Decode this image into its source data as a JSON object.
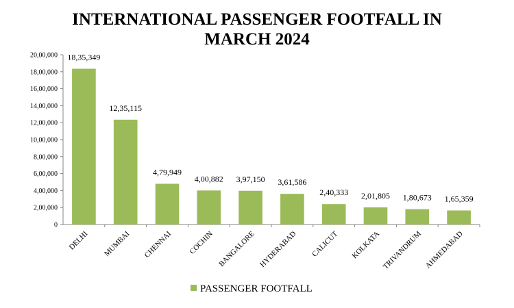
{
  "chart_data": {
    "type": "bar",
    "title_lines": [
      "INTERNATIONAL PASSENGER FOOTFALL IN",
      "MARCH 2024"
    ],
    "categories": [
      "DELHI",
      "MUMBAI",
      "CHENNAI",
      "COCHIN",
      "BANGALORE",
      "HYDERABAD",
      "CALICUT",
      "KOLKATA",
      "TRIVANDRUM",
      "AHMEDABAD"
    ],
    "series": [
      {
        "name": "PASSENGER FOOTFALL",
        "values": [
          1835349,
          1235115,
          479949,
          400882,
          397150,
          361586,
          240333,
          201805,
          180673,
          165359
        ],
        "labels": [
          "18,35,349",
          "12,35,115",
          "4,79,949",
          "4,00,882",
          "3,97,150",
          "3,61,586",
          "2,40,333",
          "2,01,805",
          "1,80,673",
          "1,65,359"
        ],
        "color": "#9BBB59"
      }
    ],
    "ylim": [
      0,
      2000000
    ],
    "yticks": [
      0,
      200000,
      400000,
      600000,
      800000,
      1000000,
      1200000,
      1400000,
      1600000,
      1800000,
      2000000
    ],
    "ytick_labels": [
      "0",
      "2,00,000",
      "4,00,000",
      "6,00,000",
      "8,00,000",
      "10,00,000",
      "12,00,000",
      "14,00,000",
      "16,00,000",
      "18,00,000",
      "20,00,000"
    ],
    "grid": false,
    "legend_position": "bottom"
  }
}
